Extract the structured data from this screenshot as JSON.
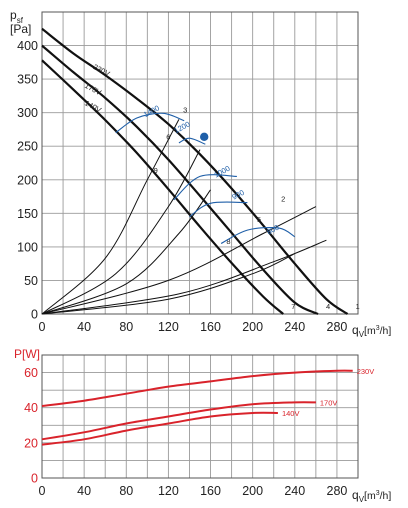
{
  "chart_data": [
    {
      "type": "line",
      "ylabel_main": "p",
      "ylabel_sub": "sf",
      "yunit": "[Pa]",
      "xlabel_main": "q",
      "xlabel_sub": "V",
      "xunit_pre": "[m",
      "xunit_sup": "3",
      "xunit_post": "/h]",
      "xlim": [
        0,
        300
      ],
      "ylim": [
        0,
        450
      ],
      "xticks": [
        0,
        40,
        80,
        120,
        160,
        200,
        240,
        280
      ],
      "yticks": [
        0,
        50,
        100,
        150,
        200,
        250,
        300,
        350,
        400
      ],
      "grid": true,
      "series": [
        {
          "name": "230V",
          "x": [
            0,
            30,
            60,
            90,
            120,
            150,
            180,
            210,
            240,
            270,
            290
          ],
          "y": [
            425,
            388,
            356,
            321,
            283,
            238,
            187,
            132,
            75,
            22,
            0
          ],
          "end_label": "1"
        },
        {
          "name": "170V",
          "x": [
            0,
            30,
            60,
            90,
            120,
            150,
            180,
            210,
            240,
            262
          ],
          "y": [
            400,
            360,
            322,
            279,
            230,
            176,
            121,
            66,
            17,
            0
          ],
          "end_label": "4"
        },
        {
          "name": "140V",
          "x": [
            0,
            30,
            60,
            90,
            120,
            150,
            180,
            210,
            229
          ],
          "y": [
            378,
            334,
            289,
            240,
            186,
            130,
            76,
            26,
            0
          ],
          "end_label": "7"
        }
      ],
      "system_curves": [
        {
          "label": "3",
          "x": [
            0,
            60,
            100,
            130
          ],
          "y": [
            0,
            83,
            200,
            290
          ]
        },
        {
          "label": "6",
          "x": [
            0,
            70,
            120,
            150
          ],
          "y": [
            0,
            60,
            160,
            245
          ]
        },
        {
          "label": "9",
          "x": [
            0,
            80,
            130,
            160
          ],
          "y": [
            0,
            45,
            120,
            185
          ]
        },
        {
          "label": "2",
          "x": [
            0,
            120,
            210,
            260
          ],
          "y": [
            0,
            50,
            120,
            160
          ]
        },
        {
          "label": "5",
          "x": [
            0,
            130,
            220,
            270
          ],
          "y": [
            0,
            30,
            78,
            110
          ]
        },
        {
          "label": "8",
          "x": [
            0,
            120,
            200,
            240
          ],
          "y": [
            0,
            22,
            60,
            90
          ]
        }
      ],
      "point_labels": [
        {
          "text": "3",
          "x": 134,
          "y": 300
        },
        {
          "text": "6",
          "x": 118,
          "y": 260
        },
        {
          "text": "9",
          "x": 106,
          "y": 210
        },
        {
          "text": "2",
          "x": 227,
          "y": 168
        },
        {
          "text": "5",
          "x": 204,
          "y": 137
        },
        {
          "text": "8",
          "x": 175,
          "y": 104
        }
      ],
      "series_labels": [
        {
          "text": "230V",
          "x": 48,
          "y": 366
        },
        {
          "text": "170V",
          "x": 40,
          "y": 338
        },
        {
          "text": "140V",
          "x": 40,
          "y": 312
        }
      ],
      "speed_lines": [
        {
          "label": "1400",
          "x": [
            70,
            90,
            115,
            135
          ],
          "y": [
            270,
            292,
            299,
            288
          ]
        },
        {
          "label": "1200",
          "x": [
            130,
            140,
            155
          ],
          "y": [
            255,
            262,
            253
          ]
        },
        {
          "label": "1000",
          "x": [
            125,
            150,
            185
          ],
          "y": [
            170,
            205,
            205
          ]
        },
        {
          "label": "900",
          "x": [
            140,
            160,
            195
          ],
          "y": [
            145,
            165,
            166
          ]
        },
        {
          "label": "800",
          "x": [
            170,
            195,
            225,
            240
          ],
          "y": [
            105,
            125,
            128,
            115
          ]
        }
      ],
      "speed_labels": [
        {
          "text": "1400",
          "x": 98,
          "y": 293
        },
        {
          "text": "1200",
          "x": 127,
          "y": 269
        },
        {
          "text": "1000",
          "x": 165,
          "y": 203
        },
        {
          "text": "900",
          "x": 182,
          "y": 170
        },
        {
          "text": "800",
          "x": 215,
          "y": 118
        }
      ],
      "marker": {
        "x": 154,
        "y": 264,
        "color": "#1f5fa8"
      },
      "main_color": "#111111",
      "blue_color": "#1f5fa8"
    },
    {
      "type": "line",
      "ylabel_main": "P",
      "yunit": "[W]",
      "xlabel_main": "q",
      "xlabel_sub": "V",
      "xunit_pre": "[m",
      "xunit_sup": "3",
      "xunit_post": "/h]",
      "xlim": [
        0,
        300
      ],
      "ylim": [
        0,
        70
      ],
      "xticks": [
        0,
        40,
        80,
        120,
        160,
        200,
        240,
        280
      ],
      "yticks": [
        0,
        20,
        40,
        60
      ],
      "grid": true,
      "color": "#d9232b",
      "series": [
        {
          "name": "230V",
          "x": [
            0,
            40,
            80,
            120,
            160,
            200,
            240,
            280,
            295
          ],
          "y": [
            41,
            44,
            48,
            52,
            55,
            58,
            60,
            61,
            61
          ]
        },
        {
          "name": "170V",
          "x": [
            0,
            40,
            80,
            120,
            160,
            200,
            240,
            260
          ],
          "y": [
            22,
            26,
            31,
            35,
            39,
            42,
            43,
            43
          ]
        },
        {
          "name": "140V",
          "x": [
            0,
            40,
            80,
            120,
            160,
            200,
            224
          ],
          "y": [
            19,
            22,
            27,
            31,
            35,
            37,
            37
          ]
        }
      ]
    }
  ]
}
